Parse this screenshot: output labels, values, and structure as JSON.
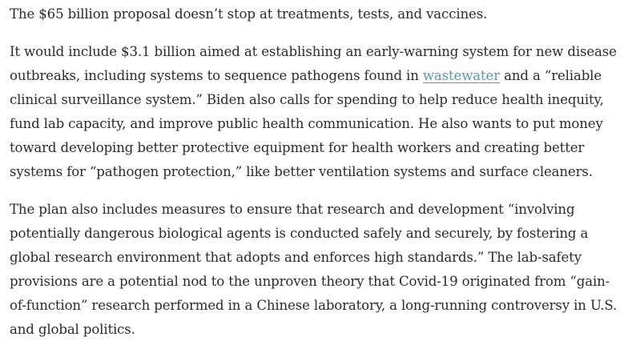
{
  "article": {
    "p1": {
      "text": "The $65 billion proposal doesn’t stop at treatments, tests, and vaccines."
    },
    "p2": {
      "before_link": "It would include $3.1 billion aimed at establishing an early-warning system for new disease outbreaks, including systems to sequence pathogens found in ",
      "link_text": "wastewater",
      "after_link": " and a “reliable clinical surveillance system.” Biden also calls for spending to help reduce health inequity, fund lab capacity, and improve public health communication. He also wants to put money toward developing better protective equipment for health workers and creating better systems for “pathogen protection,” like better ventilation systems and surface cleaners."
    },
    "p3": {
      "text": "The plan also includes measures to ensure that research and development “involving potentially dangerous biological agents is conducted safely and securely, by fostering a global research environment that adopts and enforces high standards.” The lab-safety provisions are a potential nod to the unproven theory that Covid-19 originated from “gain-of-function” research performed in a Chinese laboratory, a long-running controversy in U.S. and global politics."
    }
  },
  "colors": {
    "text": "#2b2b2b",
    "link": "#5a9aa3",
    "background": "#ffffff"
  }
}
